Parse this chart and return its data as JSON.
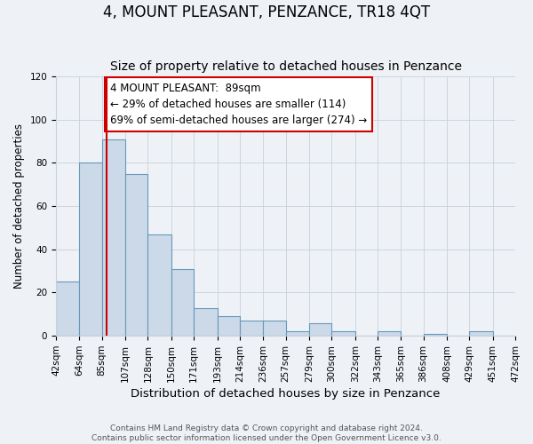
{
  "title": "4, MOUNT PLEASANT, PENZANCE, TR18 4QT",
  "subtitle": "Size of property relative to detached houses in Penzance",
  "xlabel": "Distribution of detached houses by size in Penzance",
  "ylabel": "Number of detached properties",
  "bin_edges": [
    42,
    64,
    85,
    107,
    128,
    150,
    171,
    193,
    214,
    236,
    257,
    279,
    300,
    322,
    343,
    365,
    386,
    408,
    429,
    451,
    472
  ],
  "bin_counts": [
    25,
    80,
    91,
    75,
    47,
    31,
    13,
    9,
    7,
    7,
    2,
    6,
    2,
    0,
    2,
    0,
    1,
    0,
    2,
    0
  ],
  "bar_face_color": "#ccd9e8",
  "bar_edge_color": "#6699bb",
  "property_size": 89,
  "vline_color": "#cc0000",
  "annotation_line1": "4 MOUNT PLEASANT:  89sqm",
  "annotation_line2": "← 29% of detached houses are smaller (114)",
  "annotation_line3": "69% of semi-detached houses are larger (274) →",
  "annotation_box_color": "#ffffff",
  "annotation_box_edge": "#cc0000",
  "ylim": [
    0,
    120
  ],
  "yticks": [
    0,
    20,
    40,
    60,
    80,
    100,
    120
  ],
  "background_color": "#eef2f7",
  "grid_color": "#c8d0dc",
  "footer_line1": "Contains HM Land Registry data © Crown copyright and database right 2024.",
  "footer_line2": "Contains public sector information licensed under the Open Government Licence v3.0.",
  "title_fontsize": 12,
  "subtitle_fontsize": 10,
  "xlabel_fontsize": 9.5,
  "ylabel_fontsize": 8.5,
  "tick_fontsize": 7.5,
  "annotation_fontsize": 8.5,
  "footer_fontsize": 6.5
}
